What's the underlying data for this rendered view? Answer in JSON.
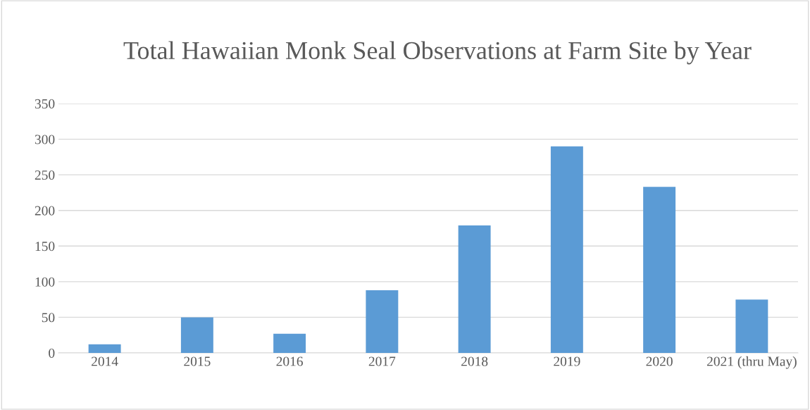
{
  "chart_data": {
    "type": "bar",
    "title": "Total Hawaiian Monk Seal Observations at Farm Site by Year",
    "categories": [
      "2014",
      "2015",
      "2016",
      "2017",
      "2018",
      "2019",
      "2020",
      "2021 (thru May)"
    ],
    "values": [
      12,
      50,
      27,
      88,
      179,
      290,
      233,
      75
    ],
    "color": "#5b9bd5",
    "ylim": [
      0,
      350
    ],
    "yticks": [
      0,
      50,
      100,
      150,
      200,
      250,
      300,
      350
    ],
    "grid": "y",
    "legend": false
  }
}
